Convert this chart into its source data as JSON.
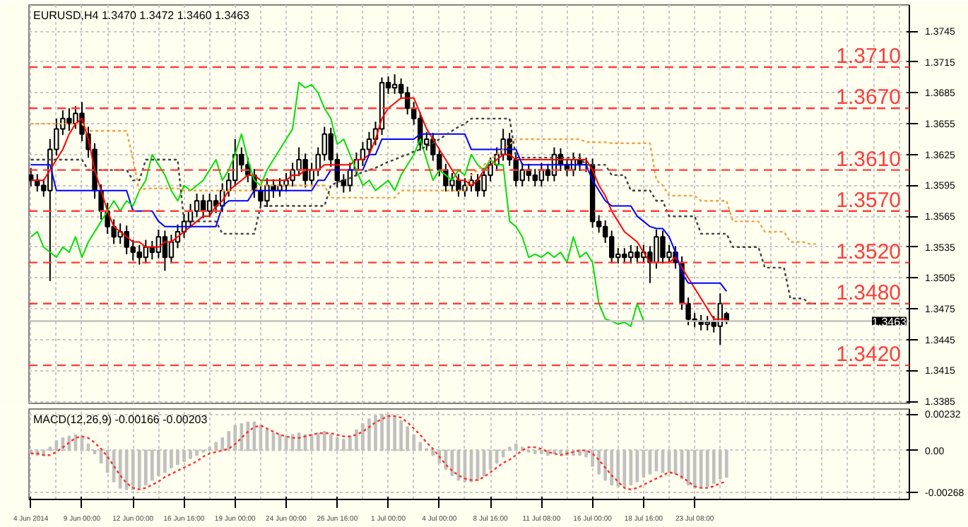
{
  "chart_data": [
    {
      "type": "candlestick",
      "title": "EURUSD,H4 1.3470 1.3472 1.3460 1.3463",
      "color": "#000000",
      "categories": [
        null,
        null,
        null,
        null,
        null,
        null,
        null,
        null,
        null,
        null,
        null,
        null,
        null,
        null,
        null,
        null,
        null,
        null,
        null,
        null,
        null,
        null,
        null,
        null,
        null,
        null,
        null,
        null,
        null,
        null,
        null,
        null,
        null,
        null,
        null,
        null,
        null,
        null,
        null,
        null,
        null,
        null,
        null,
        null,
        null,
        null,
        null,
        null,
        null,
        null,
        null,
        null,
        null,
        null,
        null,
        null,
        null,
        null,
        null,
        null,
        null,
        null,
        null,
        null,
        null,
        null,
        null,
        null,
        null,
        null,
        null,
        null,
        null,
        null,
        null,
        null,
        null,
        null,
        null,
        null,
        null,
        null,
        null,
        null,
        null,
        null,
        null,
        null,
        null,
        null,
        null,
        null,
        null,
        null,
        null,
        null,
        null,
        null,
        null,
        null,
        null,
        null,
        null,
        null,
        null,
        null,
        null,
        null,
        null,
        null,
        null,
        null,
        null,
        null,
        null,
        null,
        null,
        null,
        null,
        null,
        null,
        null,
        null,
        null
      ],
      "ohlc": [
        [
          1.3605,
          1.3612,
          1.3594,
          1.36
        ],
        [
          1.36,
          1.3606,
          1.3589,
          1.3595
        ],
        [
          1.3595,
          1.3601,
          1.3584,
          1.359
        ],
        [
          1.359,
          1.364,
          1.3502,
          1.363
        ],
        [
          1.363,
          1.366,
          1.3624,
          1.365
        ],
        [
          1.365,
          1.3668,
          1.3644,
          1.366
        ],
        [
          1.366,
          1.367,
          1.3648,
          1.3655
        ],
        [
          1.3655,
          1.3672,
          1.365,
          1.3665
        ],
        [
          1.3665,
          1.3676,
          1.3638,
          1.3645
        ],
        [
          1.3645,
          1.3652,
          1.3622,
          1.363
        ],
        [
          1.363,
          1.3636,
          1.3582,
          1.359
        ],
        [
          1.359,
          1.3596,
          1.3562,
          1.357
        ],
        [
          1.357,
          1.3578,
          1.3548,
          1.3555
        ],
        [
          1.3555,
          1.3562,
          1.3538,
          1.3545
        ],
        [
          1.3545,
          1.3558,
          1.3538,
          1.355
        ],
        [
          1.355,
          1.3556,
          1.3528,
          1.3535
        ],
        [
          1.3535,
          1.3542,
          1.3522,
          1.353
        ],
        [
          1.353,
          1.3537,
          1.3518,
          1.3525
        ],
        [
          1.3525,
          1.3542,
          1.3519,
          1.3535
        ],
        [
          1.3535,
          1.3541,
          1.3523,
          1.353
        ],
        [
          1.353,
          1.3552,
          1.3524,
          1.3545
        ],
        [
          1.3545,
          1.3551,
          1.3512,
          1.3525
        ],
        [
          1.3525,
          1.3547,
          1.3519,
          1.354
        ],
        [
          1.354,
          1.3557,
          1.3534,
          1.355
        ],
        [
          1.355,
          1.3567,
          1.3544,
          1.356
        ],
        [
          1.356,
          1.3577,
          1.3554,
          1.357
        ],
        [
          1.357,
          1.3587,
          1.3564,
          1.358
        ],
        [
          1.358,
          1.3586,
          1.3563,
          1.357
        ],
        [
          1.357,
          1.3587,
          1.3564,
          1.358
        ],
        [
          1.358,
          1.3586,
          1.3568,
          1.3575
        ],
        [
          1.3575,
          1.3597,
          1.3569,
          1.359
        ],
        [
          1.359,
          1.3607,
          1.3584,
          1.36
        ],
        [
          1.36,
          1.364,
          1.3594,
          1.3625
        ],
        [
          1.3625,
          1.3632,
          1.3608,
          1.3615
        ],
        [
          1.3615,
          1.3622,
          1.3598,
          1.3605
        ],
        [
          1.3605,
          1.3611,
          1.3583,
          1.359
        ],
        [
          1.359,
          1.3596,
          1.3573,
          1.358
        ],
        [
          1.358,
          1.3602,
          1.3574,
          1.3595
        ],
        [
          1.3595,
          1.3601,
          1.3583,
          1.359
        ],
        [
          1.359,
          1.3602,
          1.3584,
          1.3595
        ],
        [
          1.3595,
          1.3607,
          1.3589,
          1.36
        ],
        [
          1.36,
          1.3617,
          1.3594,
          1.361
        ],
        [
          1.361,
          1.3632,
          1.3604,
          1.362
        ],
        [
          1.362,
          1.3626,
          1.3593,
          1.36
        ],
        [
          1.36,
          1.3617,
          1.3594,
          1.361
        ],
        [
          1.361,
          1.3632,
          1.3604,
          1.3625
        ],
        [
          1.3625,
          1.3652,
          1.3619,
          1.3645
        ],
        [
          1.3645,
          1.3651,
          1.3613,
          1.362
        ],
        [
          1.362,
          1.3626,
          1.3593,
          1.36
        ],
        [
          1.36,
          1.3606,
          1.3588,
          1.3595
        ],
        [
          1.3595,
          1.3617,
          1.3589,
          1.361
        ],
        [
          1.361,
          1.3627,
          1.3604,
          1.362
        ],
        [
          1.362,
          1.3637,
          1.3614,
          1.363
        ],
        [
          1.363,
          1.3647,
          1.3624,
          1.364
        ],
        [
          1.364,
          1.3657,
          1.3634,
          1.365
        ],
        [
          1.365,
          1.37,
          1.3644,
          1.3695
        ],
        [
          1.3695,
          1.3701,
          1.3684,
          1.369
        ],
        [
          1.369,
          1.3703,
          1.3684,
          1.3693
        ],
        [
          1.3693,
          1.3699,
          1.3679,
          1.3685
        ],
        [
          1.3685,
          1.3691,
          1.3664,
          1.367
        ],
        [
          1.367,
          1.3676,
          1.3654,
          1.366
        ],
        [
          1.366,
          1.3666,
          1.3629,
          1.3635
        ],
        [
          1.3635,
          1.3647,
          1.3629,
          1.364
        ],
        [
          1.364,
          1.3646,
          1.3619,
          1.3625
        ],
        [
          1.3625,
          1.3631,
          1.3604,
          1.361
        ],
        [
          1.361,
          1.3616,
          1.3589,
          1.3595
        ],
        [
          1.3595,
          1.3607,
          1.3589,
          1.36
        ],
        [
          1.36,
          1.3606,
          1.3584,
          1.359
        ],
        [
          1.359,
          1.3602,
          1.3584,
          1.3595
        ],
        [
          1.3595,
          1.3607,
          1.3589,
          1.36
        ],
        [
          1.36,
          1.3606,
          1.3584,
          1.359
        ],
        [
          1.359,
          1.3612,
          1.3584,
          1.3605
        ],
        [
          1.3605,
          1.3622,
          1.3599,
          1.3615
        ],
        [
          1.3615,
          1.3632,
          1.3609,
          1.3625
        ],
        [
          1.3625,
          1.365,
          1.3619,
          1.364
        ],
        [
          1.364,
          1.3646,
          1.3614,
          1.362
        ],
        [
          1.362,
          1.3626,
          1.3594,
          1.36
        ],
        [
          1.36,
          1.3617,
          1.3594,
          1.361
        ],
        [
          1.361,
          1.3616,
          1.3599,
          1.3605
        ],
        [
          1.3605,
          1.3611,
          1.3594,
          1.36
        ],
        [
          1.36,
          1.3617,
          1.3594,
          1.361
        ],
        [
          1.361,
          1.3616,
          1.3599,
          1.3605
        ],
        [
          1.3605,
          1.3632,
          1.3599,
          1.3625
        ],
        [
          1.3625,
          1.3631,
          1.3609,
          1.3615
        ],
        [
          1.3615,
          1.3621,
          1.3604,
          1.361
        ],
        [
          1.361,
          1.3627,
          1.3604,
          1.362
        ],
        [
          1.362,
          1.3626,
          1.3609,
          1.3615
        ],
        [
          1.3615,
          1.3622,
          1.3608,
          1.3615
        ],
        [
          1.3615,
          1.3621,
          1.3554,
          1.356
        ],
        [
          1.356,
          1.3566,
          1.3549,
          1.3555
        ],
        [
          1.3555,
          1.3561,
          1.3539,
          1.3545
        ],
        [
          1.3545,
          1.3551,
          1.3519,
          1.3525
        ],
        [
          1.3525,
          1.3534,
          1.3519,
          1.3528
        ],
        [
          1.3528,
          1.3534,
          1.3519,
          1.3525
        ],
        [
          1.3525,
          1.3537,
          1.3519,
          1.353
        ],
        [
          1.353,
          1.3536,
          1.3519,
          1.3525
        ],
        [
          1.3525,
          1.3537,
          1.3519,
          1.353
        ],
        [
          1.353,
          1.3536,
          1.35,
          1.352
        ],
        [
          1.352,
          1.3552,
          1.3514,
          1.3545
        ],
        [
          1.3545,
          1.3551,
          1.3519,
          1.3525
        ],
        [
          1.3525,
          1.3537,
          1.3519,
          1.353
        ],
        [
          1.353,
          1.3536,
          1.3514,
          1.352
        ],
        [
          1.352,
          1.3526,
          1.3474,
          1.348
        ],
        [
          1.348,
          1.3486,
          1.3459,
          1.3465
        ],
        [
          1.3465,
          1.3471,
          1.3457,
          1.3463
        ],
        [
          1.3463,
          1.3469,
          1.3454,
          1.346
        ],
        [
          1.346,
          1.3468,
          1.3454,
          1.3462
        ],
        [
          1.3462,
          1.3468,
          1.3452,
          1.3458
        ],
        [
          1.3458,
          1.349,
          1.344,
          1.348
        ],
        [
          1.347,
          1.3472,
          1.346,
          1.3463
        ],
        null,
        null,
        null,
        null,
        null,
        null,
        null,
        null,
        null,
        null,
        null,
        null,
        null,
        null
      ],
      "series": [
        {
          "type": "line",
          "color": "#ff0000",
          "values": [
            1.36,
            1.36,
            1.36,
            1.361,
            1.362,
            1.363,
            1.3645,
            1.3655,
            1.366,
            1.364,
            1.361,
            1.359,
            1.357,
            1.3555,
            1.355,
            1.3545,
            1.354,
            1.354,
            1.3535,
            1.3535,
            1.3535,
            1.354,
            1.354,
            1.3545,
            1.355,
            1.3555,
            1.356,
            1.3565,
            1.3565,
            1.3575,
            1.358,
            1.359,
            1.3595,
            1.36,
            1.3605,
            1.3605,
            1.36,
            1.36,
            1.36,
            1.36,
            1.36,
            1.3605,
            1.3605,
            1.361,
            1.361,
            1.361,
            1.3615,
            1.3615,
            1.3615,
            1.3615,
            1.3615,
            1.362,
            1.362,
            1.3625,
            1.364,
            1.366,
            1.367,
            1.3675,
            1.368,
            1.368,
            1.368,
            1.3665,
            1.365,
            1.364,
            1.363,
            1.362,
            1.361,
            1.36,
            1.36,
            1.3595,
            1.36,
            1.361,
            1.3615,
            1.362,
            1.3625,
            1.3625,
            1.362,
            1.362,
            1.362,
            1.362,
            1.362,
            1.362,
            1.362,
            1.362,
            1.362,
            1.362,
            1.362,
            1.362,
            1.361,
            1.3595,
            1.3585,
            1.357,
            1.356,
            1.355,
            1.3545,
            1.354,
            1.353,
            1.352,
            1.352,
            1.352,
            1.352,
            1.3525,
            1.3515,
            1.3505,
            1.3495,
            1.3485,
            1.3475,
            1.3465,
            1.3465,
            1.3465,
            null,
            null,
            null,
            null,
            null,
            null,
            null,
            null,
            null,
            null,
            null,
            null,
            null,
            null
          ]
        },
        {
          "type": "line",
          "color": "#0000ff",
          "values": [
            1.3615,
            1.3615,
            1.3615,
            1.3615,
            1.359,
            1.359,
            1.359,
            1.359,
            1.359,
            1.359,
            1.359,
            1.359,
            1.359,
            1.359,
            1.359,
            1.359,
            1.357,
            1.357,
            1.357,
            1.357,
            1.356,
            1.3555,
            1.3555,
            1.3555,
            1.3555,
            1.3555,
            1.3555,
            1.3555,
            1.3555,
            1.3555,
            1.3575,
            1.358,
            1.358,
            1.358,
            1.358,
            1.359,
            1.359,
            1.359,
            1.359,
            1.359,
            1.359,
            1.359,
            1.359,
            1.359,
            1.359,
            1.36,
            1.36,
            1.361,
            1.361,
            1.361,
            1.361,
            1.361,
            1.361,
            1.3625,
            1.3625,
            1.364,
            1.364,
            1.364,
            1.364,
            1.364,
            1.364,
            1.3645,
            1.3645,
            1.3645,
            1.3645,
            1.3645,
            1.3645,
            1.3645,
            1.3645,
            1.363,
            1.363,
            1.363,
            1.363,
            1.363,
            1.363,
            1.363,
            1.363,
            1.3615,
            1.3615,
            1.3615,
            1.3615,
            1.3615,
            1.3615,
            1.3615,
            1.3615,
            1.3615,
            1.3615,
            1.3615,
            1.36,
            1.359,
            1.358,
            1.3575,
            1.3575,
            1.3575,
            1.3575,
            1.3565,
            1.356,
            1.3555,
            1.3553,
            1.3553,
            1.3545,
            1.353,
            1.351,
            1.35,
            1.35,
            1.35,
            1.35,
            1.35,
            1.35,
            1.3492,
            null,
            null,
            null,
            null,
            null,
            null,
            null,
            null,
            null,
            null,
            null,
            null,
            null,
            null
          ]
        },
        {
          "type": "line",
          "color": "#00e000",
          "values": [
            1.3545,
            1.355,
            1.3535,
            1.353,
            1.3525,
            1.3535,
            1.353,
            1.3545,
            1.3525,
            1.354,
            1.355,
            1.356,
            1.357,
            1.358,
            1.357,
            1.358,
            1.3575,
            1.359,
            1.36,
            1.3625,
            1.3615,
            1.3605,
            1.359,
            1.358,
            1.3595,
            1.359,
            1.3595,
            1.36,
            1.361,
            1.362,
            1.36,
            1.361,
            1.3625,
            1.3645,
            1.362,
            1.36,
            1.3595,
            1.361,
            1.362,
            1.363,
            1.364,
            1.365,
            1.3695,
            1.369,
            1.3693,
            1.3685,
            1.367,
            1.366,
            1.3635,
            1.364,
            1.3625,
            1.361,
            1.3595,
            1.36,
            1.359,
            1.3595,
            1.36,
            1.359,
            1.3605,
            1.3615,
            1.3625,
            1.364,
            1.362,
            1.36,
            1.361,
            1.3605,
            1.36,
            1.361,
            1.3605,
            1.3625,
            1.3615,
            1.361,
            1.362,
            1.3615,
            1.3615,
            1.356,
            1.3555,
            1.3545,
            1.3525,
            1.3528,
            1.3525,
            1.353,
            1.3525,
            1.353,
            1.352,
            1.3545,
            1.3525,
            1.353,
            1.352,
            1.348,
            1.3465,
            1.3463,
            1.346,
            1.3462,
            1.3458,
            1.348,
            1.3463,
            null,
            null,
            null,
            null,
            null,
            null,
            null,
            null,
            null,
            null,
            null,
            null,
            null,
            null,
            null,
            null,
            null,
            null,
            null,
            null,
            null,
            null,
            null,
            null,
            null,
            null,
            null
          ]
        },
        {
          "type": "line",
          "color": "#f5a040",
          "line_style": "dotted",
          "values": [
            1.3655,
            1.3655,
            1.3655,
            1.3655,
            1.3655,
            1.3655,
            1.3655,
            1.3655,
            1.3655,
            1.3648,
            1.3648,
            1.3648,
            1.3648,
            1.3648,
            1.3648,
            1.3648,
            1.362,
            1.359,
            1.3592,
            1.3592,
            1.3592,
            1.3592,
            1.3592,
            1.3592,
            1.359,
            1.359,
            1.359,
            1.359,
            1.359,
            1.359,
            1.359,
            1.359,
            1.359,
            1.359,
            1.359,
            1.359,
            1.3595,
            1.3595,
            1.3595,
            1.3595,
            1.3595,
            1.3595,
            1.3595,
            1.3595,
            1.3595,
            1.3595,
            1.3595,
            1.3583,
            1.3583,
            1.3583,
            1.3583,
            1.3583,
            1.3583,
            1.3583,
            1.3583,
            1.3583,
            1.3583,
            1.3583,
            1.359,
            1.359,
            1.359,
            1.359,
            1.359,
            1.359,
            1.359,
            1.359,
            1.359,
            1.359,
            1.359,
            1.3605,
            1.361,
            1.3615,
            1.362,
            1.3625,
            1.363,
            1.3635,
            1.364,
            1.364,
            1.364,
            1.364,
            1.364,
            1.364,
            1.364,
            1.364,
            1.364,
            1.364,
            1.364,
            1.3637,
            1.3637,
            1.3637,
            1.3637,
            1.3636,
            1.3636,
            1.3636,
            1.3636,
            1.3636,
            1.3636,
            1.3636,
            1.36,
            1.3595,
            1.3585,
            1.3585,
            1.3585,
            1.3585,
            1.3585,
            1.358,
            1.358,
            1.358,
            1.358,
            1.358,
            1.356,
            1.356,
            1.356,
            1.356,
            1.356,
            1.355,
            1.355,
            1.355,
            1.355,
            1.354,
            1.354,
            1.354,
            1.3538,
            1.3538
          ]
        },
        {
          "type": "line",
          "color": "#404040",
          "line_style": "dotted",
          "values": [
            1.362,
            1.362,
            1.362,
            1.362,
            1.362,
            1.362,
            1.362,
            1.362,
            1.362,
            1.361,
            1.361,
            1.361,
            1.361,
            1.361,
            1.361,
            1.361,
            1.36,
            1.36,
            1.362,
            1.362,
            1.362,
            1.362,
            1.362,
            1.362,
            1.356,
            1.356,
            1.356,
            1.356,
            1.356,
            1.356,
            1.3548,
            1.3548,
            1.3548,
            1.3548,
            1.3548,
            1.3548,
            1.3575,
            1.3575,
            1.3575,
            1.3575,
            1.3575,
            1.3575,
            1.3575,
            1.3575,
            1.3575,
            1.3575,
            1.3575,
            1.3595,
            1.3598,
            1.36,
            1.3602,
            1.3605,
            1.3608,
            1.361,
            1.3612,
            1.3615,
            1.3618,
            1.362,
            1.3623,
            1.3625,
            1.3628,
            1.363,
            1.3633,
            1.3636,
            1.364,
            1.3644,
            1.3648,
            1.3652,
            1.3655,
            1.366,
            1.366,
            1.366,
            1.366,
            1.366,
            1.366,
            1.366,
            1.3622,
            1.3622,
            1.3622,
            1.3622,
            1.3622,
            1.3622,
            1.3622,
            1.3622,
            1.3622,
            1.3622,
            1.3622,
            1.3615,
            1.3615,
            1.3615,
            1.3615,
            1.3605,
            1.3605,
            1.3605,
            1.359,
            1.359,
            1.359,
            1.359,
            1.358,
            1.358,
            1.3565,
            1.3565,
            1.3565,
            1.3565,
            1.3565,
            1.3548,
            1.3548,
            1.3548,
            1.3548,
            1.3548,
            1.3535,
            1.3535,
            1.3535,
            1.3535,
            1.3535,
            1.3515,
            1.3515,
            1.3515,
            1.3515,
            1.3485,
            1.3485,
            1.3485,
            1.348,
            1.348
          ]
        }
      ],
      "ylim": [
        1.3383,
        1.37705
      ],
      "yticks": [
        1.3745,
        1.3715,
        1.3685,
        1.3655,
        1.3625,
        1.3595,
        1.3565,
        1.3535,
        1.3505,
        1.3475,
        1.3445,
        1.3415,
        1.3385
      ],
      "ref_lines": [
        {
          "axis": "y",
          "value": 1.371,
          "label": "1.3710",
          "color": "#ff3c3c",
          "line_style": "dashed"
        },
        {
          "axis": "y",
          "value": 1.367,
          "label": "1.3670",
          "color": "#ff3c3c",
          "line_style": "dashed"
        },
        {
          "axis": "y",
          "value": 1.361,
          "label": "1.3610",
          "color": "#ff3c3c",
          "line_style": "dashed"
        },
        {
          "axis": "y",
          "value": 1.357,
          "label": "1.3570",
          "color": "#ff3c3c",
          "line_style": "dashed"
        },
        {
          "axis": "y",
          "value": 1.352,
          "label": "1.3520",
          "color": "#ff3c3c",
          "line_style": "dashed"
        },
        {
          "axis": "y",
          "value": 1.348,
          "label": "1.3480",
          "color": "#ff3c3c",
          "line_style": "dashed"
        },
        {
          "axis": "y",
          "value": 1.342,
          "label": "1.3420",
          "color": "#ff3c3c",
          "line_style": "dashed"
        },
        {
          "axis": "y",
          "value": 1.3463,
          "label": "1.3463",
          "color": "#c0c0c0",
          "line_style": "solid"
        }
      ],
      "grid": true
    },
    {
      "type": "bar",
      "title": "MACD(12,26,9) -0.00166 -0.00203",
      "categories": [
        "4 Jun 2014",
        null,
        null,
        null,
        null,
        null,
        null,
        null,
        "9 Jun 00:00",
        null,
        null,
        null,
        null,
        null,
        null,
        null,
        "12 Jun 00:00",
        null,
        null,
        null,
        null,
        null,
        null,
        null,
        "16 Jun 16:00",
        null,
        null,
        null,
        null,
        null,
        null,
        null,
        "19 Jun 00:00",
        null,
        null,
        null,
        null,
        null,
        null,
        null,
        "24 Jun 00:00",
        null,
        null,
        null,
        null,
        null,
        null,
        null,
        "26 Jun 16:00",
        null,
        null,
        null,
        null,
        null,
        null,
        null,
        "1 Jul 00:00",
        null,
        null,
        null,
        null,
        null,
        null,
        null,
        "4 Jul 00:00",
        null,
        null,
        null,
        null,
        null,
        null,
        null,
        "8 Jul 16:00",
        null,
        null,
        null,
        null,
        null,
        null,
        null,
        "11 Jul 08:00",
        null,
        null,
        null,
        null,
        null,
        null,
        null,
        "16 Jul 00:00",
        null,
        null,
        null,
        null,
        null,
        null,
        null,
        "18 Jul 16:00",
        null,
        null,
        null,
        null,
        null,
        null,
        null,
        "23 Jul 08:00",
        null,
        null,
        null,
        null,
        null,
        null,
        null,
        null,
        null,
        null,
        null,
        null,
        null,
        null,
        null,
        null,
        null,
        null,
        null
      ],
      "series": [
        {
          "color": "#c0c0c0",
          "values": [
            -0.0002,
            -0.0003,
            -0.0003,
            0.0002,
            0.0006,
            0.0008,
            0.0009,
            0.001,
            0.0009,
            0.0004,
            -0.0002,
            -0.0008,
            -0.0014,
            -0.002,
            -0.0024,
            -0.0025,
            -0.0025,
            -0.0024,
            -0.0022,
            -0.0019,
            -0.0016,
            -0.0014,
            -0.0011,
            -0.0009,
            -0.0007,
            -0.0005,
            -0.0003,
            -0.0001,
            0.0002,
            0.0005,
            0.0008,
            0.0012,
            0.0016,
            0.0017,
            0.0018,
            0.0018,
            0.0016,
            0.0013,
            0.0011,
            0.001,
            0.0009,
            0.001,
            0.0011,
            0.001,
            0.001,
            0.0011,
            0.0012,
            0.001,
            0.0008,
            0.0007,
            0.0009,
            0.0013,
            0.0017,
            0.002,
            0.0022,
            0.0023,
            0.0023,
            0.0022,
            0.0019,
            0.0015,
            0.001,
            0.0005,
            0.0001,
            -0.0003,
            -0.0008,
            -0.0012,
            -0.0016,
            -0.0019,
            -0.002,
            -0.002,
            -0.0019,
            -0.0016,
            -0.0012,
            -0.0008,
            -0.0004,
            0.0002,
            0.0004,
            0.0002,
            -0.0001,
            -0.0002,
            -0.0002,
            -0.0003,
            -0.0002,
            -0.0002,
            -0.0003,
            -0.0003,
            -0.0003,
            -0.0004,
            -0.001,
            -0.0015,
            -0.0019,
            -0.0022,
            -0.0023,
            -0.0023,
            -0.0022,
            -0.002,
            -0.0017,
            -0.0015,
            -0.0013,
            -0.0014,
            -0.0014,
            -0.0015,
            -0.0018,
            -0.0022,
            -0.0024,
            -0.0024,
            -0.0023,
            -0.0021,
            -0.0018,
            -0.0017,
            null,
            null,
            null,
            null,
            null,
            null,
            null,
            null,
            null,
            null,
            null,
            null,
            null,
            null
          ]
        },
        {
          "type": "line",
          "color": "#ff3030",
          "line_style": "dotted",
          "values": [
            -0.0002,
            -0.0002,
            -0.0003,
            -0.0003,
            -0.0001,
            0.0002,
            0.0005,
            0.0008,
            0.0009,
            0.0008,
            0.0005,
            0.0001,
            -0.0004,
            -0.001,
            -0.0016,
            -0.0021,
            -0.0024,
            -0.0025,
            -0.0024,
            -0.0022,
            -0.002,
            -0.0017,
            -0.0015,
            -0.0013,
            -0.0011,
            -0.0009,
            -0.0007,
            -0.0004,
            -0.0002,
            -0.0001,
            0.0,
            0.0001,
            0.0004,
            0.0008,
            0.0012,
            0.0015,
            0.0016,
            0.0014,
            0.0012,
            0.001,
            0.0009,
            0.0008,
            0.0008,
            0.0009,
            0.001,
            0.0011,
            0.0011,
            0.0011,
            0.001,
            0.0009,
            0.0009,
            0.001,
            0.0012,
            0.0015,
            0.0018,
            0.002,
            0.0022,
            0.0022,
            0.0021,
            0.0018,
            0.0014,
            0.001,
            0.0005,
            0.0001,
            -0.0004,
            -0.0009,
            -0.0013,
            -0.0016,
            -0.0018,
            -0.0019,
            -0.0019,
            -0.0017,
            -0.0014,
            -0.0011,
            -0.0008,
            -0.0006,
            -0.0003,
            0.0,
            0.0002,
            0.0002,
            0.0001,
            -0.0001,
            -0.0002,
            -0.0003,
            -0.0002,
            -0.0001,
            0.0,
            0.0,
            -0.0002,
            -0.0006,
            -0.0011,
            -0.0016,
            -0.002,
            -0.0024,
            -0.0025,
            -0.0024,
            -0.0022,
            -0.002,
            -0.0018,
            -0.0016,
            -0.0014,
            -0.0015,
            -0.0017,
            -0.002,
            -0.0023,
            -0.0024,
            -0.0024,
            -0.0023,
            -0.0021,
            -0.002,
            null,
            null,
            null,
            null,
            null,
            null,
            null,
            null,
            null,
            null,
            null,
            null,
            null,
            null
          ]
        }
      ],
      "ylim": [
        -0.00314,
        0.00265
      ],
      "yticks": [
        0.00232,
        {
          "value": 0,
          "label": "0.00"
        },
        -0.00268
      ],
      "grid": true
    }
  ]
}
